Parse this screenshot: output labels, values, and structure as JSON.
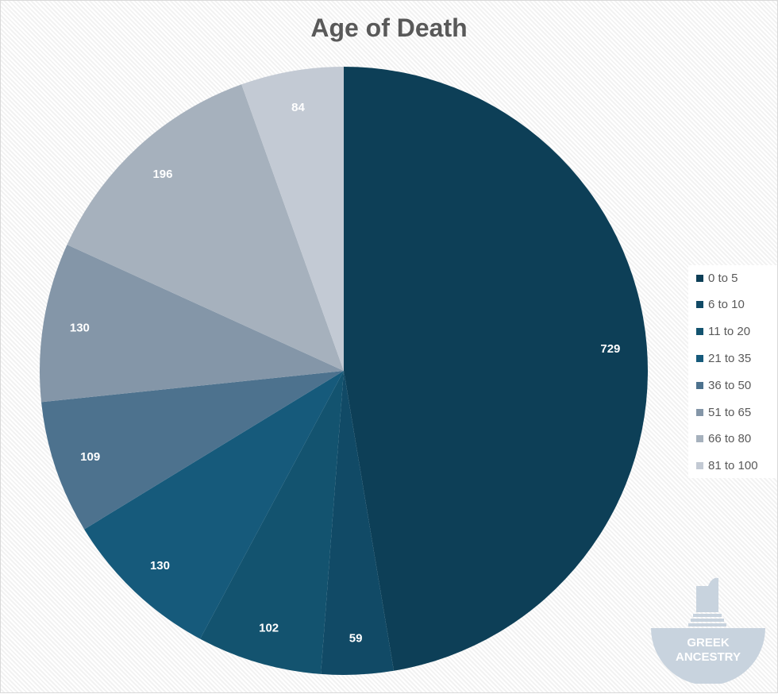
{
  "chart_data": {
    "type": "pie",
    "title": "Age of Death",
    "categories": [
      "0 to 5",
      "6 to 10",
      "11 to 20",
      "21 to 35",
      "36 to 50",
      "51 to 65",
      "66 to 80",
      "81 to 100"
    ],
    "values": [
      729,
      59,
      102,
      130,
      109,
      130,
      196,
      84
    ],
    "colors": [
      "#0d3f57",
      "#114a66",
      "#13536f",
      "#165a7b",
      "#4d728e",
      "#8496a8",
      "#a6b1bd",
      "#c3cad4"
    ],
    "legend_position": "right",
    "start_angle_deg": 0,
    "direction": "clockwise"
  },
  "watermark": {
    "line1": "GREEK",
    "line2": "ANCESTRY"
  }
}
